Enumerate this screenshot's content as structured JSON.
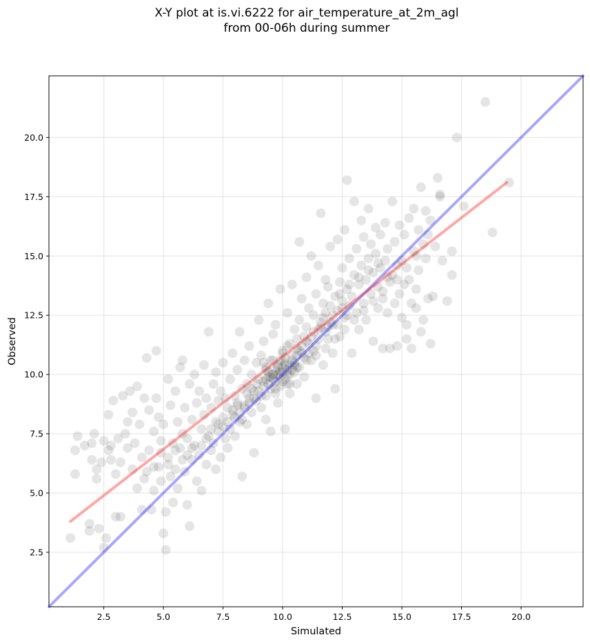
{
  "chart_data": {
    "type": "scatter",
    "title_line1": "X-Y plot at is.vi.6222 for air_temperature_at_2m_agl",
    "title_line2": "from 00-06h during summer",
    "xlabel": "Simulated",
    "ylabel": "Observed",
    "xlim": [
      0.2,
      22.6
    ],
    "ylim": [
      0.2,
      22.6
    ],
    "x_ticks": [
      2.5,
      5.0,
      7.5,
      10.0,
      12.5,
      15.0,
      17.5,
      20.0
    ],
    "y_ticks": [
      2.5,
      5.0,
      7.5,
      10.0,
      12.5,
      15.0,
      17.5,
      20.0
    ],
    "x_tick_labels": [
      "2.5",
      "5.0",
      "7.5",
      "10.0",
      "12.5",
      "15.0",
      "17.5",
      "20.0"
    ],
    "y_tick_labels": [
      "2.5",
      "5.0",
      "7.5",
      "10.0",
      "12.5",
      "15.0",
      "17.5",
      "20.0"
    ],
    "grid": true,
    "point_color": "#000000",
    "point_opacity": 0.1,
    "identity_line": {
      "x": [
        0.2,
        22.6
      ],
      "y": [
        0.2,
        22.6
      ],
      "color": "#0000ff",
      "opacity": 0.35
    },
    "fit_line": {
      "x": [
        1.1,
        19.4
      ],
      "y": [
        3.8,
        18.1
      ],
      "color": "#ff0000",
      "opacity": 0.35
    },
    "points": [
      [
        1.1,
        3.1
      ],
      [
        1.3,
        6.8
      ],
      [
        1.4,
        7.4
      ],
      [
        1.3,
        5.8
      ],
      [
        1.7,
        7.0
      ],
      [
        1.9,
        3.7
      ],
      [
        1.9,
        3.4
      ],
      [
        2.0,
        6.4
      ],
      [
        2.0,
        7.1
      ],
      [
        2.1,
        7.5
      ],
      [
        2.2,
        6.0
      ],
      [
        2.3,
        3.5
      ],
      [
        2.2,
        5.6
      ],
      [
        2.4,
        6.3
      ],
      [
        2.5,
        7.2
      ],
      [
        2.5,
        2.7
      ],
      [
        2.6,
        3.1
      ],
      [
        2.7,
        6.8
      ],
      [
        2.7,
        8.3
      ],
      [
        2.8,
        6.4
      ],
      [
        2.8,
        7.0
      ],
      [
        2.9,
        8.9
      ],
      [
        3.0,
        5.8
      ],
      [
        3.0,
        4.0
      ],
      [
        3.1,
        7.3
      ],
      [
        3.2,
        4.0
      ],
      [
        3.2,
        6.3
      ],
      [
        3.3,
        9.1
      ],
      [
        3.4,
        7.5
      ],
      [
        3.5,
        6.9
      ],
      [
        3.5,
        8.0
      ],
      [
        3.6,
        9.3
      ],
      [
        3.7,
        6.0
      ],
      [
        3.7,
        8.4
      ],
      [
        3.8,
        7.1
      ],
      [
        3.9,
        5.2
      ],
      [
        3.9,
        9.5
      ],
      [
        4.0,
        7.9
      ],
      [
        4.1,
        4.3
      ],
      [
        4.1,
        6.5
      ],
      [
        4.2,
        9.0
      ],
      [
        4.2,
        5.6
      ],
      [
        4.3,
        10.7
      ],
      [
        4.4,
        6.8
      ],
      [
        4.4,
        8.5
      ],
      [
        4.5,
        4.3
      ],
      [
        4.6,
        7.6
      ],
      [
        4.6,
        5.1
      ],
      [
        4.7,
        11.0
      ],
      [
        4.7,
        9.0
      ],
      [
        4.8,
        6.1
      ],
      [
        4.8,
        8.2
      ],
      [
        4.9,
        5.5
      ],
      [
        4.9,
        6.7
      ],
      [
        5.0,
        3.3
      ],
      [
        5.0,
        7.9
      ],
      [
        5.1,
        2.6
      ],
      [
        5.1,
        4.2
      ],
      [
        5.2,
        9.8
      ],
      [
        5.2,
        6.2
      ],
      [
        5.3,
        5.7
      ],
      [
        5.3,
        8.7
      ],
      [
        5.4,
        7.1
      ],
      [
        5.4,
        4.6
      ],
      [
        5.5,
        6.0
      ],
      [
        5.5,
        9.3
      ],
      [
        5.6,
        5.2
      ],
      [
        5.6,
        8.0
      ],
      [
        5.7,
        10.3
      ],
      [
        5.7,
        6.9
      ],
      [
        5.8,
        7.5
      ],
      [
        5.8,
        10.6
      ],
      [
        5.9,
        5.9
      ],
      [
        5.9,
        8.6
      ],
      [
        6.0,
        4.5
      ],
      [
        6.0,
        7.3
      ],
      [
        6.1,
        3.6
      ],
      [
        6.1,
        9.6
      ],
      [
        6.2,
        6.4
      ],
      [
        6.2,
        8.1
      ],
      [
        6.3,
        7.0
      ],
      [
        6.3,
        10.0
      ],
      [
        6.4,
        5.5
      ],
      [
        6.4,
        8.8
      ],
      [
        6.5,
        6.6
      ],
      [
        6.5,
        9.3
      ],
      [
        6.6,
        7.7
      ],
      [
        6.6,
        5.1
      ],
      [
        6.7,
        8.3
      ],
      [
        6.7,
        10.4
      ],
      [
        6.8,
        6.2
      ],
      [
        6.8,
        9.0
      ],
      [
        6.9,
        7.4
      ],
      [
        6.9,
        11.8
      ],
      [
        7.0,
        6.8
      ],
      [
        7.0,
        8.6
      ],
      [
        7.1,
        9.6
      ],
      [
        7.1,
        7.1
      ],
      [
        7.2,
        10.1
      ],
      [
        7.2,
        6.0
      ],
      [
        7.3,
        8.9
      ],
      [
        7.3,
        7.9
      ],
      [
        7.4,
        9.3
      ],
      [
        7.4,
        6.5
      ],
      [
        7.5,
        8.2
      ],
      [
        7.5,
        10.5
      ],
      [
        7.6,
        7.3
      ],
      [
        7.6,
        9.0
      ],
      [
        7.7,
        8.6
      ],
      [
        7.7,
        6.9
      ],
      [
        7.8,
        9.8
      ],
      [
        7.8,
        7.7
      ],
      [
        7.9,
        8.3
      ],
      [
        7.9,
        10.9
      ],
      [
        8.0,
        9.1
      ],
      [
        8.0,
        7.4
      ],
      [
        8.1,
        8.8
      ],
      [
        8.1,
        10.2
      ],
      [
        8.2,
        8.0
      ],
      [
        8.2,
        11.8
      ],
      [
        8.3,
        9.4
      ],
      [
        8.3,
        5.7
      ],
      [
        8.4,
        8.7
      ],
      [
        8.4,
        10.6
      ],
      [
        8.5,
        9.6
      ],
      [
        8.5,
        7.9
      ],
      [
        8.6,
        9.0
      ],
      [
        8.6,
        11.2
      ],
      [
        8.7,
        8.4
      ],
      [
        8.7,
        10.0
      ],
      [
        8.8,
        9.3
      ],
      [
        8.8,
        6.7
      ],
      [
        8.9,
        10.5
      ],
      [
        8.9,
        8.9
      ],
      [
        9.0,
        9.8
      ],
      [
        9.0,
        12.3
      ],
      [
        9.1,
        8.6
      ],
      [
        9.1,
        10.8
      ],
      [
        9.2,
        9.5
      ],
      [
        9.2,
        11.4
      ],
      [
        9.3,
        10.2
      ],
      [
        9.3,
        8.1
      ],
      [
        9.4,
        9.9
      ],
      [
        9.4,
        13.0
      ],
      [
        9.5,
        10.6
      ],
      [
        9.5,
        7.6
      ],
      [
        9.6,
        10.0
      ],
      [
        9.6,
        11.7
      ],
      [
        9.7,
        9.4
      ],
      [
        9.7,
        12.1
      ],
      [
        9.8,
        10.4
      ],
      [
        9.8,
        8.8
      ],
      [
        9.9,
        10.1
      ],
      [
        9.9,
        13.6
      ],
      [
        10.0,
        9.7
      ],
      [
        10.0,
        11.0
      ],
      [
        10.1,
        10.5
      ],
      [
        10.1,
        7.7
      ],
      [
        10.2,
        10.2
      ],
      [
        10.2,
        12.6
      ],
      [
        10.3,
        11.3
      ],
      [
        10.3,
        9.2
      ],
      [
        10.4,
        10.8
      ],
      [
        10.4,
        13.8
      ],
      [
        10.5,
        10.4
      ],
      [
        10.5,
        11.9
      ],
      [
        10.6,
        11.1
      ],
      [
        10.6,
        9.6
      ],
      [
        10.7,
        12.3
      ],
      [
        10.7,
        15.6
      ],
      [
        10.8,
        10.9
      ],
      [
        10.8,
        13.2
      ],
      [
        10.9,
        11.6
      ],
      [
        10.9,
        9.9
      ],
      [
        11.0,
        12.0
      ],
      [
        11.0,
        14.1
      ],
      [
        11.1,
        11.3
      ],
      [
        11.1,
        12.8
      ],
      [
        11.2,
        10.6
      ],
      [
        11.2,
        15.0
      ],
      [
        11.3,
        12.5
      ],
      [
        11.3,
        11.0
      ],
      [
        11.4,
        13.4
      ],
      [
        11.4,
        9.0
      ],
      [
        11.5,
        11.9
      ],
      [
        11.5,
        14.6
      ],
      [
        11.6,
        12.2
      ],
      [
        11.6,
        16.8
      ],
      [
        11.7,
        13.0
      ],
      [
        11.7,
        10.4
      ],
      [
        11.8,
        12.6
      ],
      [
        11.8,
        14.0
      ],
      [
        11.9,
        11.5
      ],
      [
        11.9,
        13.7
      ],
      [
        12.0,
        12.9
      ],
      [
        12.0,
        15.4
      ],
      [
        12.1,
        12.1
      ],
      [
        12.1,
        10.9
      ],
      [
        12.2,
        13.3
      ],
      [
        12.2,
        9.4
      ],
      [
        12.3,
        12.7
      ],
      [
        12.3,
        15.7
      ],
      [
        12.4,
        13.9
      ],
      [
        12.4,
        11.6
      ],
      [
        12.5,
        13.1
      ],
      [
        12.5,
        14.5
      ],
      [
        12.6,
        12.4
      ],
      [
        12.6,
        16.1
      ],
      [
        12.7,
        13.6
      ],
      [
        12.7,
        18.2
      ],
      [
        12.8,
        12.9
      ],
      [
        12.8,
        14.9
      ],
      [
        12.9,
        13.3
      ],
      [
        12.9,
        10.9
      ],
      [
        13.0,
        14.2
      ],
      [
        13.0,
        17.3
      ],
      [
        13.1,
        12.6
      ],
      [
        13.1,
        15.3
      ],
      [
        13.2,
        13.8
      ],
      [
        13.2,
        11.9
      ],
      [
        13.3,
        14.6
      ],
      [
        13.3,
        16.5
      ],
      [
        13.4,
        13.0
      ],
      [
        13.4,
        15.8
      ],
      [
        13.5,
        14.0
      ],
      [
        13.5,
        12.3
      ],
      [
        13.6,
        14.9
      ],
      [
        13.6,
        17.0
      ],
      [
        13.7,
        13.4
      ],
      [
        13.7,
        15.5
      ],
      [
        13.8,
        14.3
      ],
      [
        13.8,
        11.4
      ],
      [
        13.9,
        15.1
      ],
      [
        13.9,
        16.2
      ],
      [
        14.0,
        13.7
      ],
      [
        14.0,
        12.8
      ],
      [
        14.1,
        14.5
      ],
      [
        14.1,
        15.9
      ],
      [
        14.2,
        13.2
      ],
      [
        14.2,
        11.1
      ],
      [
        14.3,
        14.8
      ],
      [
        14.3,
        16.4
      ],
      [
        14.4,
        12.6
      ],
      [
        14.4,
        15.3
      ],
      [
        14.5,
        13.9
      ],
      [
        14.5,
        11.1
      ],
      [
        14.6,
        14.2
      ],
      [
        14.6,
        17.3
      ],
      [
        14.7,
        13.0
      ],
      [
        14.7,
        15.6
      ],
      [
        14.8,
        14.6
      ],
      [
        14.8,
        11.2
      ],
      [
        14.9,
        13.4
      ],
      [
        14.9,
        16.3
      ],
      [
        15.0,
        12.4
      ],
      [
        15.0,
        14.8
      ],
      [
        15.1,
        13.8
      ],
      [
        15.1,
        15.9
      ],
      [
        15.2,
        12.1
      ],
      [
        15.2,
        11.5
      ],
      [
        15.3,
        14.0
      ],
      [
        15.3,
        16.6
      ],
      [
        15.4,
        13.0
      ],
      [
        15.4,
        11.1
      ],
      [
        15.5,
        15.2
      ],
      [
        15.5,
        17.0
      ],
      [
        15.6,
        13.6
      ],
      [
        15.6,
        12.8
      ],
      [
        15.7,
        16.1
      ],
      [
        15.7,
        14.4
      ],
      [
        15.8,
        17.9
      ],
      [
        15.8,
        11.8
      ],
      [
        15.9,
        15.5
      ],
      [
        15.9,
        12.3
      ],
      [
        16.0,
        16.9
      ],
      [
        16.0,
        14.9
      ],
      [
        16.1,
        13.2
      ],
      [
        16.1,
        15.9
      ],
      [
        16.2,
        11.3
      ],
      [
        16.2,
        16.5
      ],
      [
        16.3,
        13.3
      ],
      [
        16.4,
        15.4
      ],
      [
        16.5,
        18.3
      ],
      [
        16.6,
        17.5
      ],
      [
        16.7,
        14.8
      ],
      [
        16.9,
        13.1
      ],
      [
        17.1,
        15.2
      ],
      [
        17.1,
        14.2
      ],
      [
        17.3,
        20.0
      ],
      [
        17.6,
        17.1
      ],
      [
        18.5,
        21.5
      ],
      [
        18.8,
        16.0
      ],
      [
        19.5,
        18.1
      ],
      [
        16.6,
        17.6
      ],
      [
        9.3,
        10.3
      ],
      [
        9.6,
        9.8
      ],
      [
        9.8,
        10.0
      ],
      [
        10.0,
        10.3
      ],
      [
        9.9,
        9.5
      ],
      [
        10.2,
        10.0
      ],
      [
        9.5,
        9.4
      ],
      [
        10.4,
        10.6
      ],
      [
        9.7,
        10.2
      ],
      [
        10.1,
        9.8
      ],
      [
        10.3,
        10.4
      ],
      [
        9.4,
        10.1
      ],
      [
        10.6,
        10.8
      ],
      [
        10.8,
        11.2
      ],
      [
        11.0,
        11.4
      ],
      [
        11.2,
        11.6
      ],
      [
        11.4,
        11.2
      ],
      [
        11.6,
        12.0
      ],
      [
        11.8,
        11.8
      ],
      [
        12.0,
        12.2
      ],
      [
        9.0,
        9.3
      ],
      [
        8.8,
        9.0
      ],
      [
        8.6,
        8.8
      ],
      [
        8.4,
        8.6
      ],
      [
        8.2,
        8.4
      ],
      [
        8.0,
        8.2
      ],
      [
        9.2,
        9.7
      ],
      [
        9.1,
        9.1
      ],
      [
        10.5,
        10.1
      ],
      [
        10.7,
        10.3
      ],
      [
        10.9,
        10.7
      ],
      [
        11.1,
        10.9
      ],
      [
        11.3,
        11.8
      ],
      [
        11.5,
        11.5
      ],
      [
        11.7,
        12.4
      ],
      [
        11.9,
        12.0
      ],
      [
        12.1,
        12.5
      ],
      [
        12.3,
        12.1
      ],
      [
        12.5,
        12.8
      ],
      [
        12.7,
        12.5
      ],
      [
        8.9,
        9.6
      ],
      [
        9.3,
        9.1
      ],
      [
        9.7,
        9.2
      ],
      [
        10.1,
        10.7
      ],
      [
        10.3,
        9.6
      ],
      [
        10.0,
        10.9
      ],
      [
        9.6,
        10.6
      ],
      [
        9.2,
        10.5
      ],
      [
        8.7,
        9.4
      ],
      [
        8.5,
        9.2
      ],
      [
        8.3,
        8.1
      ],
      [
        8.1,
        8.7
      ],
      [
        7.9,
        8.5
      ],
      [
        7.7,
        8.0
      ],
      [
        7.5,
        7.8
      ],
      [
        7.3,
        7.6
      ],
      [
        10.2,
        11.2
      ],
      [
        10.6,
        11.5
      ],
      [
        11.0,
        10.6
      ],
      [
        11.4,
        10.8
      ],
      [
        11.8,
        11.1
      ],
      [
        12.2,
        11.5
      ],
      [
        12.6,
        11.9
      ],
      [
        13.0,
        12.3
      ],
      [
        13.4,
        12.7
      ],
      [
        13.8,
        13.1
      ],
      [
        14.2,
        13.5
      ],
      [
        12.4,
        13.4
      ],
      [
        12.8,
        13.8
      ],
      [
        13.2,
        14.1
      ],
      [
        13.6,
        14.4
      ],
      [
        14.0,
        14.7
      ],
      [
        14.4,
        14.1
      ],
      [
        14.8,
        14.0
      ],
      [
        15.2,
        14.5
      ],
      [
        15.6,
        15.0
      ],
      [
        6.6,
        7.0
      ],
      [
        6.8,
        7.3
      ],
      [
        7.0,
        7.7
      ],
      [
        7.2,
        8.0
      ],
      [
        5.8,
        6.4
      ],
      [
        6.0,
        6.6
      ],
      [
        6.2,
        6.9
      ],
      [
        5.5,
        6.8
      ],
      [
        5.2,
        6.5
      ],
      [
        4.9,
        7.2
      ],
      [
        4.6,
        6.1
      ],
      [
        4.3,
        5.9
      ],
      [
        9.9,
        9.9
      ],
      [
        10.0,
        10.1
      ],
      [
        9.8,
        10.3
      ],
      [
        10.1,
        10.4
      ],
      [
        9.7,
        9.7
      ],
      [
        10.2,
        9.6
      ],
      [
        10.4,
        10.2
      ],
      [
        9.6,
        10.0
      ],
      [
        10.5,
        10.5
      ],
      [
        9.5,
        9.9
      ],
      [
        10.3,
        10.0
      ],
      [
        9.9,
        10.6
      ],
      [
        10.6,
        10.3
      ],
      [
        9.4,
        9.6
      ],
      [
        10.7,
        11.0
      ],
      [
        9.3,
        9.8
      ]
    ]
  }
}
